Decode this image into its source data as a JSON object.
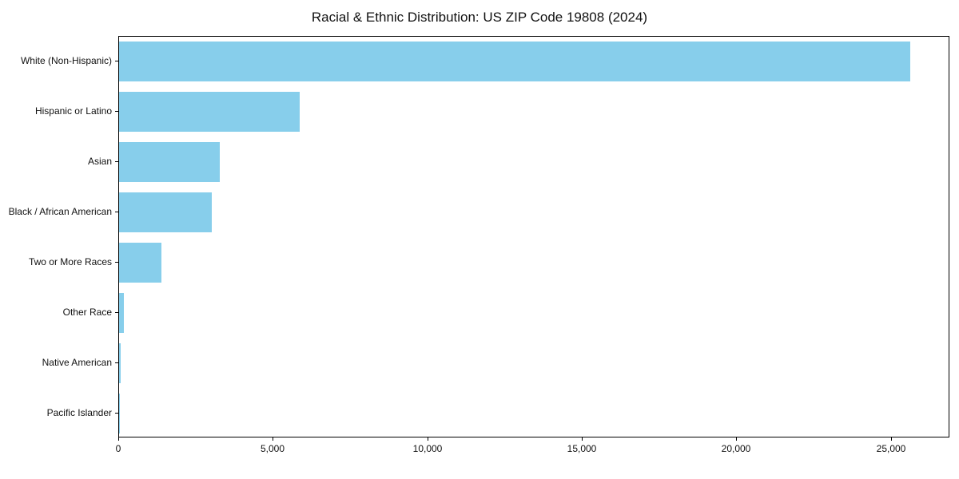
{
  "chart_data": {
    "type": "bar",
    "orientation": "horizontal",
    "title": "Racial & Ethnic Distribution: US ZIP Code 19808 (2024)",
    "categories": [
      "White (Non-Hispanic)",
      "Hispanic or Latino",
      "Asian",
      "Black / African American",
      "Two or More Races",
      "Other Race",
      "Native American",
      "Pacific Islander"
    ],
    "values": [
      25600,
      5850,
      3250,
      3000,
      1370,
      160,
      40,
      15
    ],
    "bar_color": "#87CEEB",
    "xlabel": "",
    "ylabel": "",
    "xlim": [
      0,
      26900
    ],
    "x_ticks": [
      0,
      5000,
      10000,
      15000,
      20000,
      25000
    ],
    "x_tick_labels": [
      "0",
      "5,000",
      "10,000",
      "15,000",
      "20,000",
      "25,000"
    ],
    "grid": false,
    "legend_position": "none"
  }
}
